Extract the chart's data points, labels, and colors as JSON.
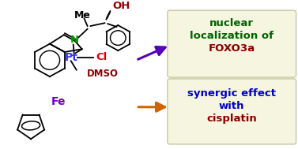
{
  "bg_color": "#ffffff",
  "box1_facecolor": "#f5f5e0",
  "box1_edgecolor": "#c8c8a0",
  "box2_facecolor": "#f5f5e0",
  "box2_edgecolor": "#c8c8a0",
  "box1_line1": "nuclear",
  "box1_line2": "localization of",
  "box1_line3": "FOXO3a",
  "box1_color1": "#006400",
  "box1_color2": "#006400",
  "box1_color3": "#8b0000",
  "box2_line1": "synergic effect",
  "box2_line2": "with",
  "box2_line3": "cisplatin",
  "box2_color1": "#0000cc",
  "box2_color2": "#0000cc",
  "box2_color3": "#8b0000",
  "arrow1_color": "#5500bb",
  "arrow2_color": "#cc6600",
  "color_Fe": "#7700bb",
  "color_Pt": "#3333ff",
  "color_Cl": "#dd0000",
  "color_N": "#009900",
  "color_OH": "#990000",
  "color_DMSO": "#8b0000",
  "color_black": "#000000",
  "figsize": [
    3.77,
    1.89
  ],
  "dpi": 100
}
